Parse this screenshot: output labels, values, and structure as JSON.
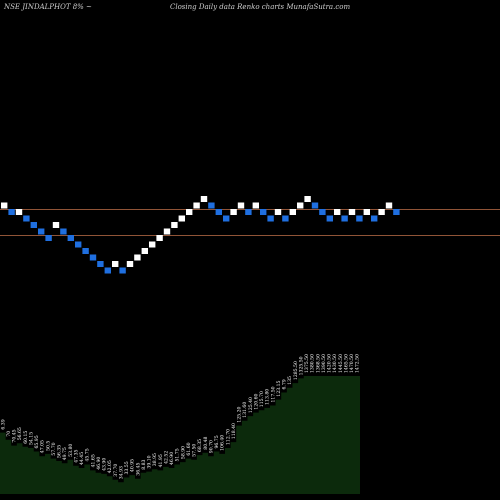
{
  "header": {
    "symbol_line": "NSE JINDALPHOT 8% ~",
    "description": "Closing Daily data  Renko  charts MunafaSutra.com"
  },
  "colors": {
    "background": "#000000",
    "brick_up": "#ffffff",
    "brick_down": "#1f6fe0",
    "reference_line": "#c0704a",
    "volume_fill": "#0c2a0c",
    "volume_label": "#ffffff"
  },
  "chart_data": {
    "type": "renko",
    "title": "NSE JINDALPHOT 8% ~ Closing Daily data Renko charts MunafaSutra.com",
    "brick_level_min": -10,
    "brick_level_max": 1,
    "bricks": [
      {
        "dir": "up",
        "level": 0
      },
      {
        "dir": "down",
        "level": -1
      },
      {
        "dir": "up",
        "level": -1
      },
      {
        "dir": "down",
        "level": -2
      },
      {
        "dir": "down",
        "level": -3
      },
      {
        "dir": "down",
        "level": -4
      },
      {
        "dir": "down",
        "level": -5
      },
      {
        "dir": "up",
        "level": -3
      },
      {
        "dir": "down",
        "level": -4
      },
      {
        "dir": "down",
        "level": -5
      },
      {
        "dir": "down",
        "level": -6
      },
      {
        "dir": "down",
        "level": -7
      },
      {
        "dir": "down",
        "level": -8
      },
      {
        "dir": "down",
        "level": -9
      },
      {
        "dir": "down",
        "level": -10
      },
      {
        "dir": "up",
        "level": -9
      },
      {
        "dir": "down",
        "level": -10
      },
      {
        "dir": "up",
        "level": -9
      },
      {
        "dir": "up",
        "level": -8
      },
      {
        "dir": "up",
        "level": -7
      },
      {
        "dir": "up",
        "level": -6
      },
      {
        "dir": "up",
        "level": -5
      },
      {
        "dir": "up",
        "level": -4
      },
      {
        "dir": "up",
        "level": -3
      },
      {
        "dir": "up",
        "level": -2
      },
      {
        "dir": "up",
        "level": -1
      },
      {
        "dir": "up",
        "level": 0
      },
      {
        "dir": "up",
        "level": 1
      },
      {
        "dir": "down",
        "level": 0
      },
      {
        "dir": "down",
        "level": -1
      },
      {
        "dir": "down",
        "level": -2
      },
      {
        "dir": "up",
        "level": -1
      },
      {
        "dir": "up",
        "level": 0
      },
      {
        "dir": "down",
        "level": -1
      },
      {
        "dir": "up",
        "level": 0
      },
      {
        "dir": "down",
        "level": -1
      },
      {
        "dir": "down",
        "level": -2
      },
      {
        "dir": "up",
        "level": -1
      },
      {
        "dir": "down",
        "level": -2
      },
      {
        "dir": "up",
        "level": -1
      },
      {
        "dir": "up",
        "level": 0
      },
      {
        "dir": "up",
        "level": 1
      },
      {
        "dir": "down",
        "level": 0
      },
      {
        "dir": "down",
        "level": -1
      },
      {
        "dir": "down",
        "level": -2
      },
      {
        "dir": "up",
        "level": -1
      },
      {
        "dir": "down",
        "level": -2
      },
      {
        "dir": "up",
        "level": -1
      },
      {
        "dir": "down",
        "level": -2
      },
      {
        "dir": "up",
        "level": -1
      },
      {
        "dir": "down",
        "level": -2
      },
      {
        "dir": "up",
        "level": -1
      },
      {
        "dir": "up",
        "level": 0
      },
      {
        "dir": "down",
        "level": -1
      }
    ],
    "reference_lines": [
      {
        "level": -1
      },
      {
        "level": -5
      }
    ],
    "volume": [
      {
        "value": 5.2,
        "label": "6.39"
      },
      {
        "value": 4.6,
        "label": "70"
      },
      {
        "value": 4.1,
        "label": "70.45"
      },
      {
        "value": 4.3,
        "label": "56.65"
      },
      {
        "value": 4.0,
        "label": "60.15"
      },
      {
        "value": 3.9,
        "label": "54.15"
      },
      {
        "value": 3.6,
        "label": "65.95"
      },
      {
        "value": 3.2,
        "label": "47.05"
      },
      {
        "value": 3.4,
        "label": "50.5"
      },
      {
        "value": 3.0,
        "label": "57.70"
      },
      {
        "value": 2.8,
        "label": "56.35"
      },
      {
        "value": 2.6,
        "label": "49.75"
      },
      {
        "value": 2.9,
        "label": "53.80"
      },
      {
        "value": 2.4,
        "label": "47.35"
      },
      {
        "value": 2.2,
        "label": "44.45"
      },
      {
        "value": 2.5,
        "label": "45.75"
      },
      {
        "value": 2.0,
        "label": "41.65"
      },
      {
        "value": 1.8,
        "label": "46.90"
      },
      {
        "value": 1.7,
        "label": "43.90"
      },
      {
        "value": 1.5,
        "label": "42.05"
      },
      {
        "value": 1.2,
        "label": "37.70"
      },
      {
        "value": 1.0,
        "label": "34.93"
      },
      {
        "value": 1.4,
        "label": "33.55"
      },
      {
        "value": 1.6,
        "label": "40.95"
      },
      {
        "value": 1.3,
        "label": "36.45"
      },
      {
        "value": 1.8,
        "label": "8.83"
      },
      {
        "value": 1.9,
        "label": "39.10"
      },
      {
        "value": 2.1,
        "label": "38.95"
      },
      {
        "value": 2.0,
        "label": "41.95"
      },
      {
        "value": 2.3,
        "label": "42.52"
      },
      {
        "value": 2.2,
        "label": "46.90"
      },
      {
        "value": 2.5,
        "label": "51.75"
      },
      {
        "value": 2.7,
        "label": "58.90"
      },
      {
        "value": 3.0,
        "label": "61.60"
      },
      {
        "value": 2.9,
        "label": "57.50"
      },
      {
        "value": 3.3,
        "label": "68.35"
      },
      {
        "value": 3.5,
        "label": "80.48"
      },
      {
        "value": 3.2,
        "label": "90.70"
      },
      {
        "value": 3.6,
        "label": "96.75"
      },
      {
        "value": 3.4,
        "label": "106.40"
      },
      {
        "value": 3.9,
        "label": "112.70"
      },
      {
        "value": 4.4,
        "label": "118.40"
      },
      {
        "value": 5.8,
        "label": "125.20"
      },
      {
        "value": 6.2,
        "label": "131.60"
      },
      {
        "value": 6.6,
        "label": "125.40"
      },
      {
        "value": 6.9,
        "label": "120.60"
      },
      {
        "value": 7.1,
        "label": "115.70"
      },
      {
        "value": 7.3,
        "label": "113.80"
      },
      {
        "value": 7.5,
        "label": "117.50"
      },
      {
        "value": 8.0,
        "label": "123.15"
      },
      {
        "value": 8.6,
        "label": "6.79"
      },
      {
        "value": 9.0,
        "label": "135"
      },
      {
        "value": 9.4,
        "label": "1285.50"
      },
      {
        "value": 9.8,
        "label": "1325.50"
      },
      {
        "value": 10.0,
        "label": "1375.50"
      },
      {
        "value": 10.0,
        "label": "1380.50"
      },
      {
        "value": 10.0,
        "label": "1368.50"
      },
      {
        "value": 10.0,
        "label": "1390.50"
      },
      {
        "value": 10.0,
        "label": "1420.50"
      },
      {
        "value": 10.0,
        "label": "1430.50"
      },
      {
        "value": 10.0,
        "label": "1445.50"
      },
      {
        "value": 10.0,
        "label": "1465.50"
      },
      {
        "value": 10.0,
        "label": "1470.50"
      },
      {
        "value": 10.0,
        "label": "1472.50"
      }
    ]
  }
}
